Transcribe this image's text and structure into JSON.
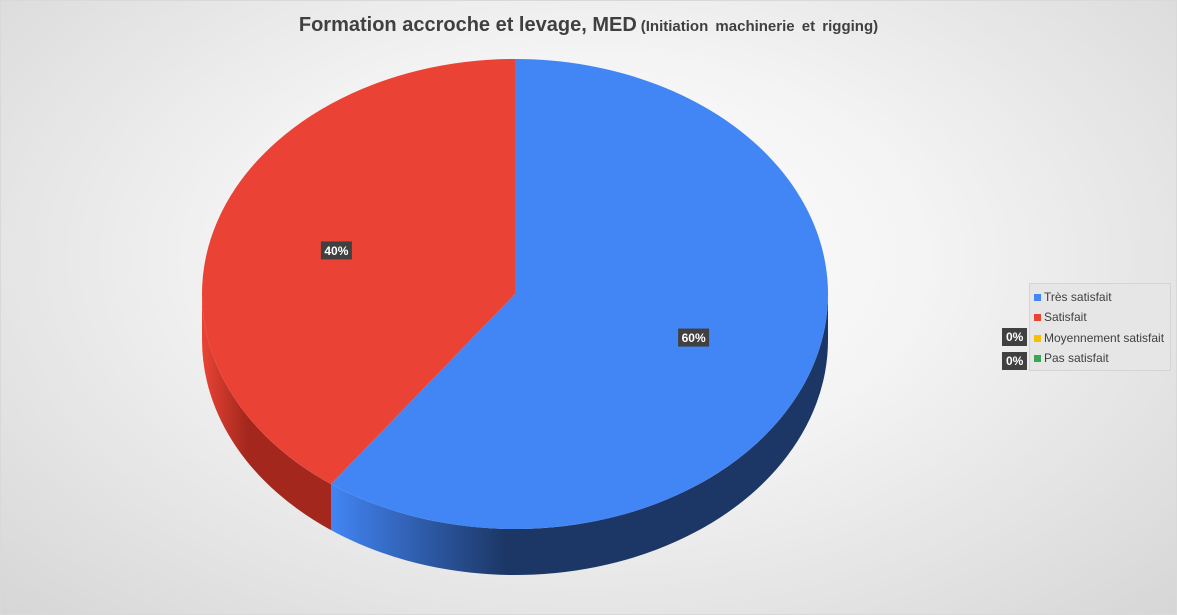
{
  "chart_data": {
    "type": "pie",
    "title": "Formation accroche et levage, MED",
    "subtitle": "(Initiation  machinerie  et rigging)",
    "categories": [
      "Très satisfait",
      "Satisfait",
      "Moyennement satisfait",
      "Pas satisfait"
    ],
    "values": [
      60,
      40,
      0,
      0
    ],
    "labels": [
      "60%",
      "40%",
      "0%",
      "0%"
    ],
    "colors": [
      "#4285f4",
      "#ea4335",
      "#fbbc04",
      "#34a853"
    ],
    "side_colors": [
      "#1c3766",
      "#a3271d",
      "#a07800",
      "#1e6b33"
    ],
    "legend_position": "right",
    "3d": true
  }
}
